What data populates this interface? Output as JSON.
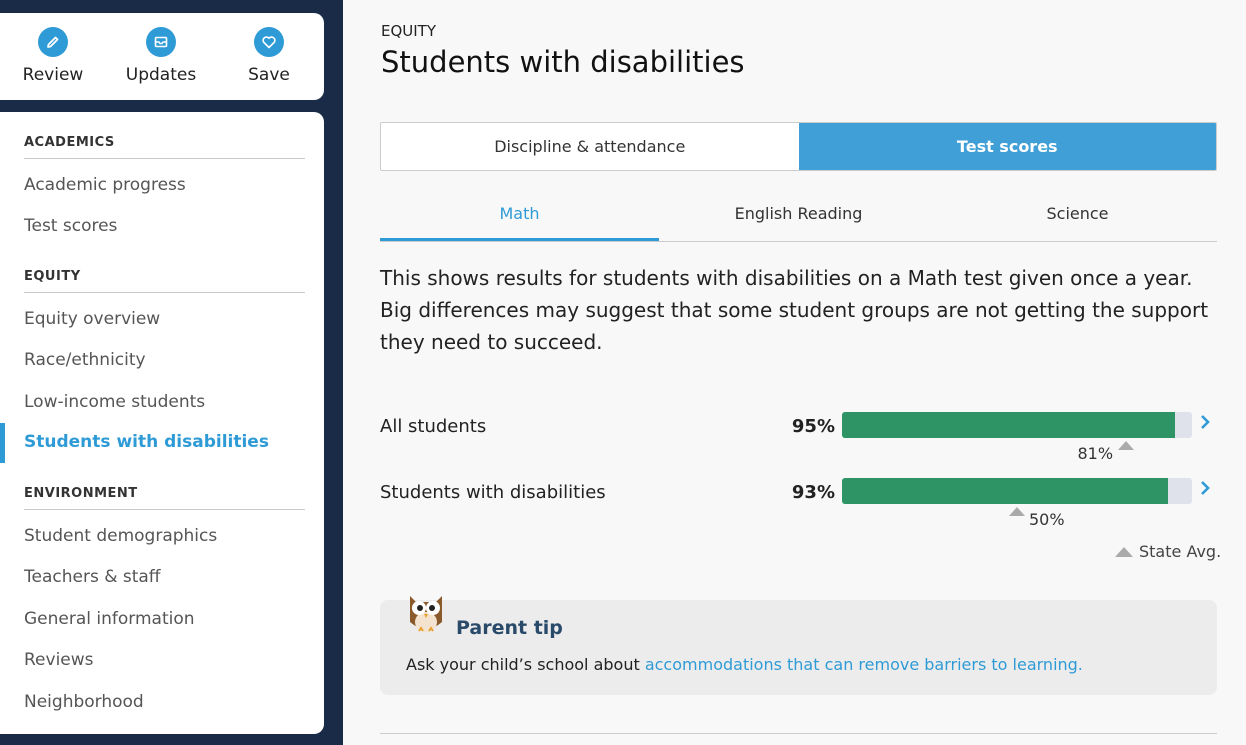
{
  "actions": [
    {
      "label": "Review",
      "icon": "pencil-icon"
    },
    {
      "label": "Updates",
      "icon": "envelope-icon"
    },
    {
      "label": "Save",
      "icon": "heart-icon"
    }
  ],
  "nav": {
    "sections": [
      {
        "heading": "ACADEMICS",
        "items": [
          "Academic progress",
          "Test scores"
        ]
      },
      {
        "heading": "EQUITY",
        "items": [
          "Equity overview",
          "Race/ethnicity",
          "Low-income students",
          "Students with disabilities"
        ]
      },
      {
        "heading": "ENVIRONMENT",
        "items": [
          "Student demographics",
          "Teachers & staff",
          "General information",
          "Reviews",
          "Neighborhood"
        ]
      }
    ],
    "active": "Students with disabilities"
  },
  "page": {
    "eyebrow": "EQUITY",
    "title": "Students with disabilities"
  },
  "toggle": [
    "Discipline & attendance",
    "Test scores"
  ],
  "toggle_active": "Test scores",
  "subtabs": [
    "Math",
    "English Reading",
    "Science"
  ],
  "subtab_active": "Math",
  "description": "This shows results for students with disabilities on a Math test given once a year. Big differences may suggest that some student groups are not getting the support they need to succeed.",
  "rows": [
    {
      "label": "All students",
      "pct_text": "95%",
      "value": 95,
      "state_avg_text": "81%",
      "state_avg": 81
    },
    {
      "label": "Students with disabilities",
      "pct_text": "93%",
      "value": 93,
      "state_avg_text": "50%",
      "state_avg": 50
    }
  ],
  "legend": "State Avg.",
  "tip": {
    "title": "Parent tip",
    "text": "Ask your child’s school about ",
    "link": "accommodations that can remove barriers to learning."
  },
  "colors": {
    "accent": "#2f9bd6",
    "bar_fill": "#2f9465",
    "bar_track": "#dfe2ea",
    "sidebar_bg": "#1a2b47"
  }
}
